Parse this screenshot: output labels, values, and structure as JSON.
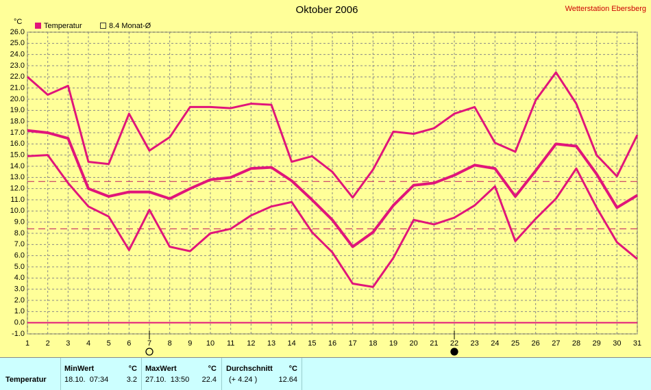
{
  "chart_data": {
    "type": "line",
    "title": "Oktober 2006",
    "source": "Wetterstation Ebersberg",
    "y_unit": "°C",
    "x": [
      1,
      2,
      3,
      4,
      5,
      6,
      7,
      8,
      9,
      10,
      11,
      12,
      13,
      14,
      15,
      16,
      17,
      18,
      19,
      20,
      21,
      22,
      23,
      24,
      25,
      26,
      27,
      28,
      29,
      30,
      31
    ],
    "xlim": [
      1,
      31
    ],
    "xticks": [
      1,
      2,
      3,
      4,
      5,
      6,
      7,
      8,
      9,
      10,
      11,
      12,
      13,
      14,
      15,
      16,
      17,
      18,
      19,
      20,
      21,
      22,
      23,
      24,
      25,
      26,
      27,
      28,
      29,
      30,
      31
    ],
    "ylim": [
      -1,
      26
    ],
    "yticks": [
      {
        "value": -1,
        "label": "-1.0"
      },
      {
        "value": 0,
        "label": "0.0"
      },
      {
        "value": 1,
        "label": "1.0"
      },
      {
        "value": 2,
        "label": "2.0"
      },
      {
        "value": 3,
        "label": "3.0"
      },
      {
        "value": 4,
        "label": "4.0"
      },
      {
        "value": 5,
        "label": "5.0"
      },
      {
        "value": 6,
        "label": "6.0"
      },
      {
        "value": 7,
        "label": "7.0"
      },
      {
        "value": 8,
        "label": "8.0"
      },
      {
        "value": 9,
        "label": "9.0"
      },
      {
        "value": 10,
        "label": "10.0"
      },
      {
        "value": 11,
        "label": "11.0"
      },
      {
        "value": 12,
        "label": "12.0"
      },
      {
        "value": 13,
        "label": "13.0"
      },
      {
        "value": 14,
        "label": "14.0"
      },
      {
        "value": 15,
        "label": "15.0"
      },
      {
        "value": 16,
        "label": "16.0"
      },
      {
        "value": 17,
        "label": "17.0"
      },
      {
        "value": 18,
        "label": "18.0"
      },
      {
        "value": 19,
        "label": "19.0"
      },
      {
        "value": 20,
        "label": "20.0"
      },
      {
        "value": 21,
        "label": "21.0"
      },
      {
        "value": 22,
        "label": "22.0"
      },
      {
        "value": 23,
        "label": "23.0"
      },
      {
        "value": 24,
        "label": "24.0"
      },
      {
        "value": 25,
        "label": "25.0"
      },
      {
        "value": 26,
        "label": "26.0"
      }
    ],
    "grid": true,
    "series": [
      {
        "name": "Temperatur",
        "color": "#e0157a",
        "values": [
          17.2,
          17.0,
          16.5,
          12.0,
          11.3,
          11.7,
          11.7,
          11.1,
          12.0,
          12.8,
          13.0,
          13.8,
          13.9,
          12.7,
          11.0,
          9.2,
          6.8,
          8.1,
          10.5,
          12.3,
          12.5,
          13.2,
          14.1,
          13.8,
          11.3,
          13.6,
          16.0,
          15.8,
          13.3,
          10.3,
          11.4
        ],
        "max_values": [
          22.0,
          20.4,
          21.2,
          14.4,
          14.2,
          18.7,
          15.4,
          16.6,
          19.3,
          19.3,
          19.2,
          19.6,
          19.5,
          14.4,
          14.9,
          13.5,
          11.2,
          13.7,
          17.1,
          16.9,
          17.4,
          18.7,
          19.3,
          16.1,
          15.3,
          19.9,
          22.4,
          19.6,
          15.0,
          13.1,
          16.8
        ],
        "min_values": [
          14.9,
          15.0,
          12.5,
          10.4,
          9.5,
          6.5,
          10.1,
          6.8,
          6.4,
          8.0,
          8.4,
          9.6,
          10.4,
          10.8,
          8.1,
          6.3,
          3.5,
          3.2,
          5.8,
          9.2,
          8.8,
          9.4,
          10.5,
          12.2,
          7.3,
          9.3,
          11.1,
          13.8,
          10.3,
          7.2,
          5.7
        ]
      }
    ],
    "reference_lines": [
      {
        "name": "8.4 Monat-Ø",
        "value": 8.4,
        "color": "#c0185f"
      },
      {
        "value": 12.64,
        "color": "#c0185f"
      }
    ],
    "moon_phases": [
      {
        "x": 7,
        "filled": false
      },
      {
        "x": 22,
        "filled": true
      }
    ]
  },
  "stats": {
    "columns": [
      "MinWert",
      "°C",
      "MaxWert",
      "°C",
      "Durchschnitt",
      "°C"
    ],
    "rows": [
      {
        "label": "Temperatur",
        "cells": [
          "18.10.  07:34",
          "3.2",
          "27.10.  13:50",
          "22.4",
          "(+ 4.24 )",
          "12.64"
        ]
      }
    ]
  }
}
